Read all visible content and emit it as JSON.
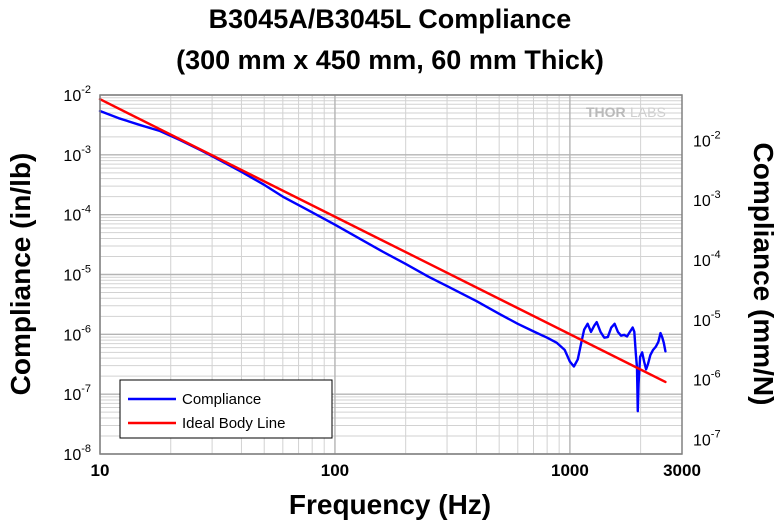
{
  "chart_data": {
    "type": "line",
    "title": [
      "B3045A/B3045L Compliance",
      "(300 mm x 450 mm, 60 mm Thick)"
    ],
    "xlabel": "Frequency (Hz)",
    "ylabel": "Compliance (in/lb)",
    "ylabel_right": "Compliance (mm/N)",
    "x_scale": "log",
    "y_scale": "log",
    "xlim": [
      10,
      3000
    ],
    "ylim": [
      1e-08,
      0.01
    ],
    "ylim_right": [
      5.71e-08,
      0.0571
    ],
    "x_ticks": [
      {
        "value": 10,
        "label": "10"
      },
      {
        "value": 100,
        "label": "100"
      },
      {
        "value": 1000,
        "label": "1000"
      },
      {
        "value": 3000,
        "label": "3000"
      }
    ],
    "y_ticks": [
      {
        "value": 0.01,
        "base": "10",
        "exp": "-2"
      },
      {
        "value": 0.001,
        "base": "10",
        "exp": "-3"
      },
      {
        "value": 0.0001,
        "base": "10",
        "exp": "-4"
      },
      {
        "value": 1e-05,
        "base": "10",
        "exp": "-5"
      },
      {
        "value": 1e-06,
        "base": "10",
        "exp": "-6"
      },
      {
        "value": 1e-07,
        "base": "10",
        "exp": "-7"
      },
      {
        "value": 1e-08,
        "base": "10",
        "exp": "-8"
      }
    ],
    "y_ticks_right": [
      {
        "value": 0.01,
        "base": "10",
        "exp": "-2"
      },
      {
        "value": 0.001,
        "base": "10",
        "exp": "-3"
      },
      {
        "value": 0.0001,
        "base": "10",
        "exp": "-4"
      },
      {
        "value": 1e-05,
        "base": "10",
        "exp": "-5"
      },
      {
        "value": 1e-06,
        "base": "10",
        "exp": "-6"
      },
      {
        "value": 1e-07,
        "base": "10",
        "exp": "-7"
      }
    ],
    "grid": true,
    "legend_position": "bottom-left",
    "watermark": {
      "left": "THOR",
      "right": "LABS"
    },
    "series": [
      {
        "name": "Compliance",
        "color": "#0000ff",
        "points": [
          [
            10,
            0.0054
          ],
          [
            12,
            0.0041
          ],
          [
            15,
            0.0031
          ],
          [
            18,
            0.0025
          ],
          [
            22,
            0.00175
          ],
          [
            27,
            0.00118
          ],
          [
            33,
            0.00078
          ],
          [
            40,
            0.00052
          ],
          [
            50,
            0.000315
          ],
          [
            60,
            0.0002
          ],
          [
            75,
            0.000125
          ],
          [
            100,
            6.8e-05
          ],
          [
            130,
            3.8e-05
          ],
          [
            160,
            2.4e-05
          ],
          [
            200,
            1.5e-05
          ],
          [
            250,
            9.2e-06
          ],
          [
            300,
            6.4e-06
          ],
          [
            400,
            3.6e-06
          ],
          [
            500,
            2.2e-06
          ],
          [
            600,
            1.5e-06
          ],
          [
            700,
            1.12e-06
          ],
          [
            800,
            8.8e-07
          ],
          [
            880,
            7.2e-07
          ],
          [
            950,
            5.5e-07
          ],
          [
            1000,
            3.5e-07
          ],
          [
            1040,
            2.9e-07
          ],
          [
            1080,
            3.8e-07
          ],
          [
            1120,
            7.5e-07
          ],
          [
            1150,
            1.2e-06
          ],
          [
            1190,
            1.5e-06
          ],
          [
            1230,
            1.1e-06
          ],
          [
            1270,
            1.4e-06
          ],
          [
            1300,
            1.6e-06
          ],
          [
            1350,
            1.1e-06
          ],
          [
            1400,
            8.8e-07
          ],
          [
            1450,
            9e-07
          ],
          [
            1500,
            1.3e-06
          ],
          [
            1550,
            1.5e-06
          ],
          [
            1600,
            1.1e-06
          ],
          [
            1650,
            9.5e-07
          ],
          [
            1700,
            9.8e-07
          ],
          [
            1750,
            9.2e-07
          ],
          [
            1800,
            1.1e-06
          ],
          [
            1850,
            1.3e-06
          ],
          [
            1880,
            1.1e-06
          ],
          [
            1910,
            4.5e-07
          ],
          [
            1930,
            2.8e-07
          ],
          [
            1945,
            5.2e-08
          ],
          [
            1960,
            1.5e-07
          ],
          [
            1990,
            4.2e-07
          ],
          [
            2030,
            5e-07
          ],
          [
            2070,
            3.5e-07
          ],
          [
            2110,
            2.6e-07
          ],
          [
            2150,
            3.2e-07
          ],
          [
            2200,
            4.5e-07
          ],
          [
            2260,
            5.5e-07
          ],
          [
            2320,
            6.2e-07
          ],
          [
            2380,
            7.5e-07
          ],
          [
            2430,
            1.05e-06
          ],
          [
            2470,
            9e-07
          ],
          [
            2510,
            7.2e-07
          ],
          [
            2550,
            5.2e-07
          ]
        ]
      },
      {
        "name": "Ideal Body Line",
        "color": "#ff0000",
        "points": [
          [
            10,
            0.0085
          ],
          [
            2550,
            1.6e-07
          ]
        ]
      }
    ]
  }
}
